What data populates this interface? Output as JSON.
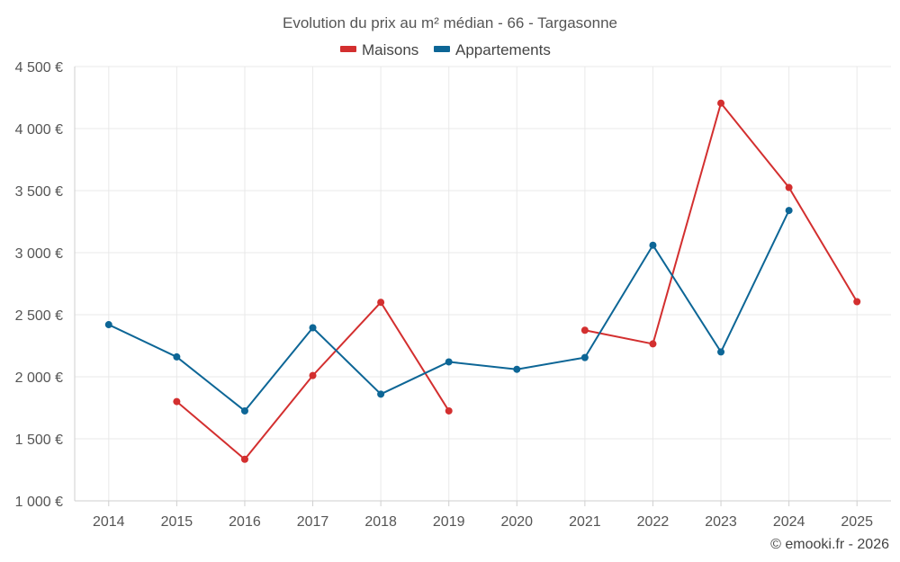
{
  "chart_data": {
    "type": "line",
    "title": "Evolution du prix au m² médian - 66 - Targasonne",
    "categories": [
      "2014",
      "2015",
      "2016",
      "2017",
      "2018",
      "2019",
      "2020",
      "2021",
      "2022",
      "2023",
      "2024",
      "2025"
    ],
    "y_ticks": [
      1000,
      1500,
      2000,
      2500,
      3000,
      3500,
      4000,
      4500
    ],
    "y_tick_labels": [
      "1 000 €",
      "1 500 €",
      "2 000 €",
      "2 500 €",
      "3 000 €",
      "3 500 €",
      "4 000 €",
      "4 500 €"
    ],
    "ylim": [
      1000,
      4500
    ],
    "grid": true,
    "legend_position": "top-center",
    "series": [
      {
        "name": "Maisons",
        "color": "#d32f2f",
        "values": [
          null,
          1800,
          1335,
          2010,
          2600,
          1725,
          null,
          2375,
          2265,
          4205,
          3525,
          2605
        ]
      },
      {
        "name": "Appartements",
        "color": "#0d6696",
        "values": [
          2420,
          2160,
          1725,
          2395,
          1860,
          2120,
          2060,
          2155,
          3060,
          2200,
          3340,
          null
        ]
      }
    ],
    "credit": "© emooki.fr - 2026"
  }
}
